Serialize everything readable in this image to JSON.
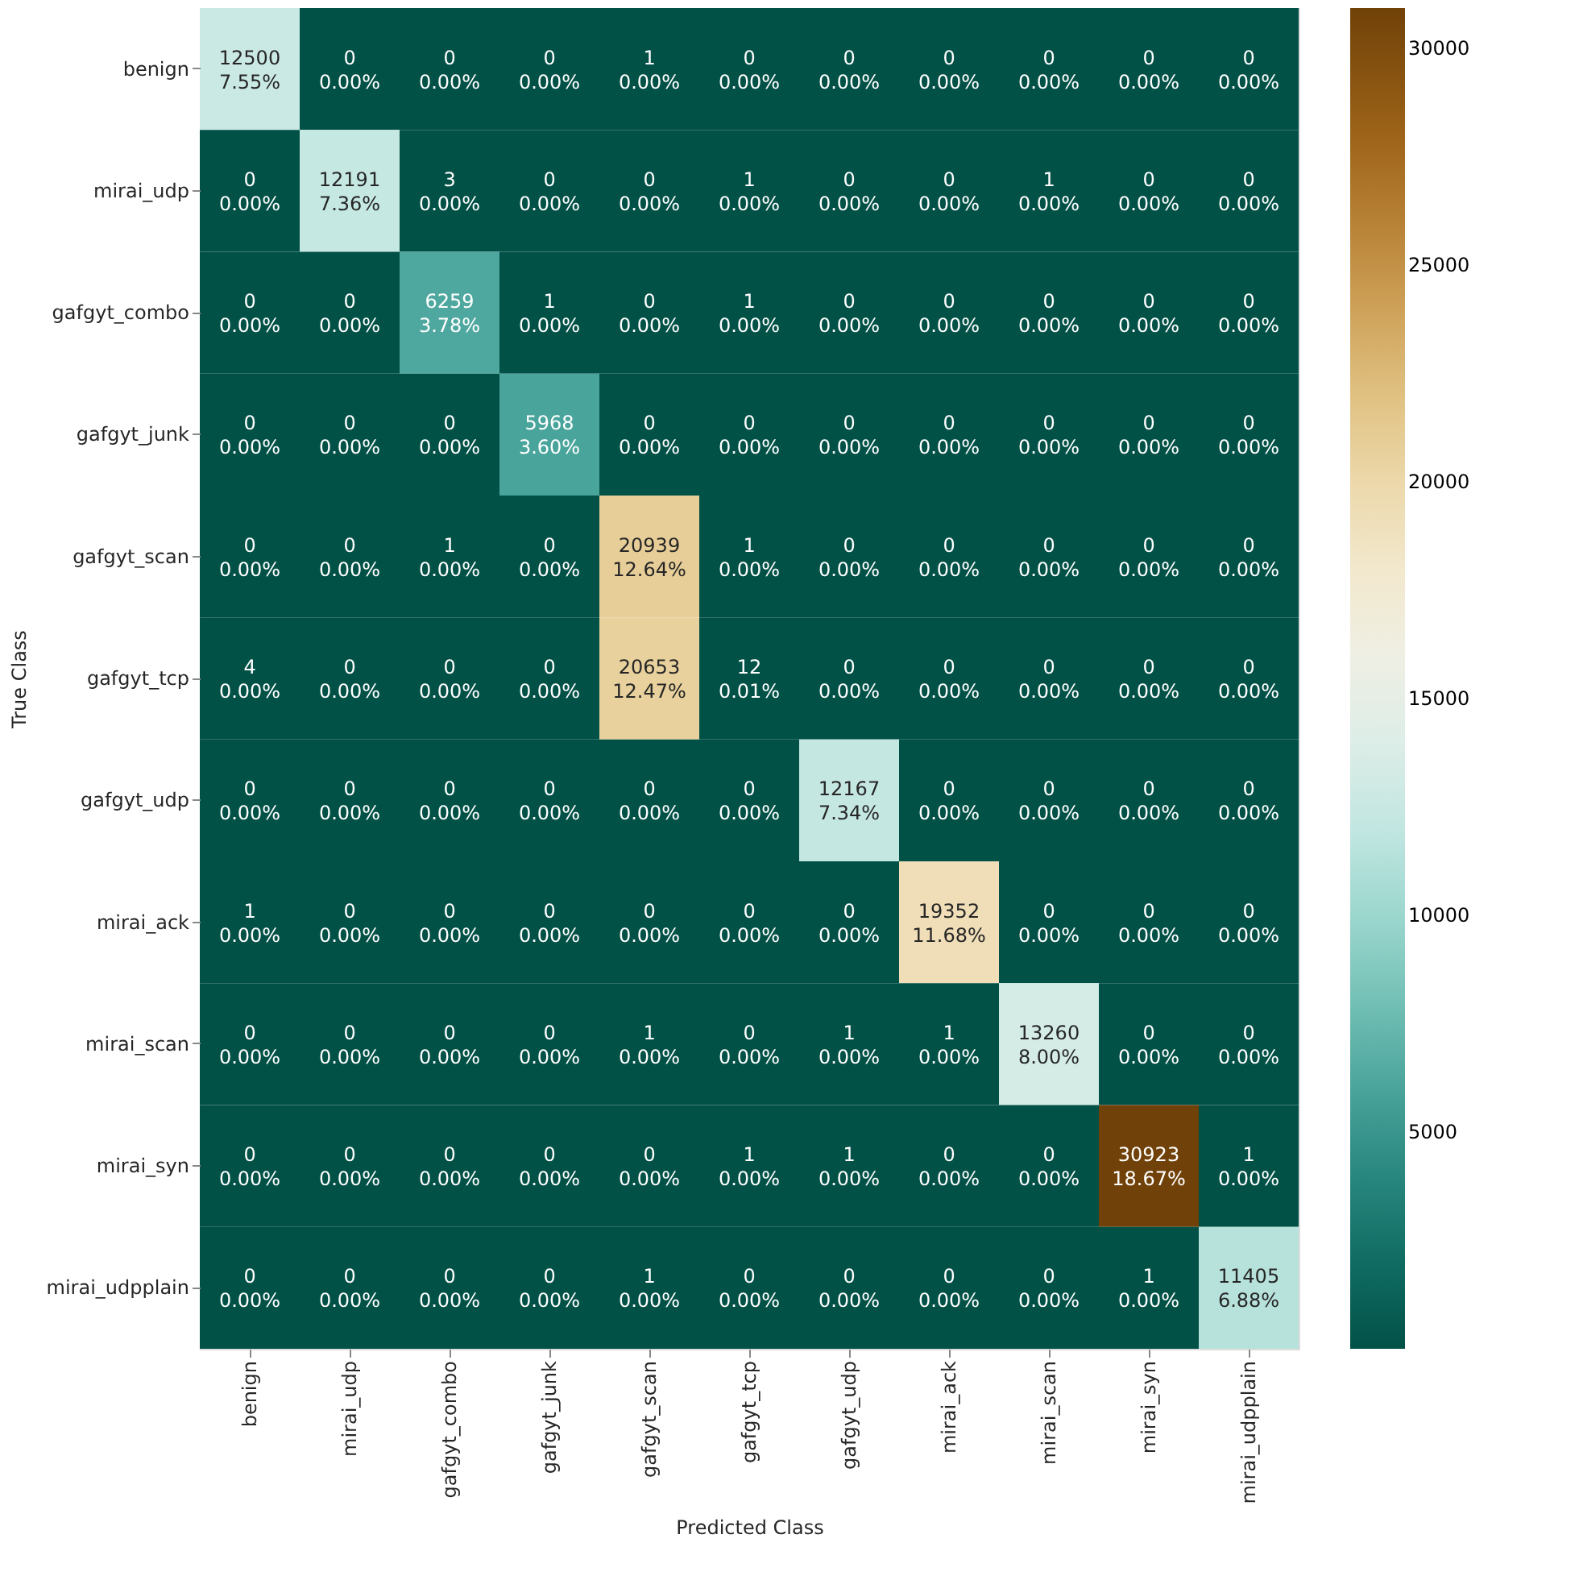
{
  "chart_data": {
    "type": "heatmap",
    "xlabel": "Predicted Class",
    "ylabel": "True Class",
    "categories": [
      "benign",
      "mirai_udp",
      "gafgyt_combo",
      "gafgyt_junk",
      "gafgyt_scan",
      "gafgyt_tcp",
      "gafgyt_udp",
      "mirai_ack",
      "mirai_scan",
      "mirai_syn",
      "mirai_udpplain"
    ],
    "y_categories": [
      "benign",
      "mirai_udp",
      "gafgyt_combo",
      "gafgyt_junk",
      "gafgyt_scan",
      "gafgyt_tcp",
      "gafgyt_udp",
      "mirai_ack",
      "mirai_scan",
      "mirai_syn",
      "mirai_udpplain"
    ],
    "cells": [
      [
        12500,
        0,
        0,
        0,
        1,
        0,
        0,
        0,
        0,
        0,
        0
      ],
      [
        0,
        12191,
        3,
        0,
        0,
        1,
        0,
        0,
        1,
        0,
        0
      ],
      [
        0,
        0,
        6259,
        1,
        0,
        1,
        0,
        0,
        0,
        0,
        0
      ],
      [
        0,
        0,
        0,
        5968,
        0,
        0,
        0,
        0,
        0,
        0,
        0
      ],
      [
        0,
        0,
        1,
        0,
        20939,
        1,
        0,
        0,
        0,
        0,
        0
      ],
      [
        4,
        0,
        0,
        0,
        20653,
        12,
        0,
        0,
        0,
        0,
        0
      ],
      [
        0,
        0,
        0,
        0,
        0,
        0,
        12167,
        0,
        0,
        0,
        0
      ],
      [
        1,
        0,
        0,
        0,
        0,
        0,
        0,
        19352,
        0,
        0,
        0
      ],
      [
        0,
        0,
        0,
        0,
        1,
        0,
        1,
        1,
        13260,
        0,
        0
      ],
      [
        0,
        0,
        0,
        0,
        0,
        1,
        1,
        0,
        0,
        30923,
        1
      ],
      [
        0,
        0,
        0,
        0,
        1,
        0,
        0,
        0,
        0,
        1,
        11405
      ]
    ],
    "cell_labels": [
      [
        "12500\n7.55%",
        "0\n0.00%",
        "0\n0.00%",
        "0\n0.00%",
        "1\n0.00%",
        "0\n0.00%",
        "0\n0.00%",
        "0\n0.00%",
        "0\n0.00%",
        "0\n0.00%",
        "0\n0.00%"
      ],
      [
        "0\n0.00%",
        "12191\n7.36%",
        "3\n0.00%",
        "0\n0.00%",
        "0\n0.00%",
        "1\n0.00%",
        "0\n0.00%",
        "0\n0.00%",
        "1\n0.00%",
        "0\n0.00%",
        "0\n0.00%"
      ],
      [
        "0\n0.00%",
        "0\n0.00%",
        "6259\n3.78%",
        "1\n0.00%",
        "0\n0.00%",
        "1\n0.00%",
        "0\n0.00%",
        "0\n0.00%",
        "0\n0.00%",
        "0\n0.00%",
        "0\n0.00%"
      ],
      [
        "0\n0.00%",
        "0\n0.00%",
        "0\n0.00%",
        "5968\n3.60%",
        "0\n0.00%",
        "0\n0.00%",
        "0\n0.00%",
        "0\n0.00%",
        "0\n0.00%",
        "0\n0.00%",
        "0\n0.00%"
      ],
      [
        "0\n0.00%",
        "0\n0.00%",
        "1\n0.00%",
        "0\n0.00%",
        "20939\n12.64%",
        "1\n0.00%",
        "0\n0.00%",
        "0\n0.00%",
        "0\n0.00%",
        "0\n0.00%",
        "0\n0.00%"
      ],
      [
        "4\n0.00%",
        "0\n0.00%",
        "0\n0.00%",
        "0\n0.00%",
        "20653\n12.47%",
        "12\n0.01%",
        "0\n0.00%",
        "0\n0.00%",
        "0\n0.00%",
        "0\n0.00%",
        "0\n0.00%"
      ],
      [
        "0\n0.00%",
        "0\n0.00%",
        "0\n0.00%",
        "0\n0.00%",
        "0\n0.00%",
        "0\n0.00%",
        "12167\n7.34%",
        "0\n0.00%",
        "0\n0.00%",
        "0\n0.00%",
        "0\n0.00%"
      ],
      [
        "1\n0.00%",
        "0\n0.00%",
        "0\n0.00%",
        "0\n0.00%",
        "0\n0.00%",
        "0\n0.00%",
        "0\n0.00%",
        "19352\n11.68%",
        "0\n0.00%",
        "0\n0.00%",
        "0\n0.00%"
      ],
      [
        "0\n0.00%",
        "0\n0.00%",
        "0\n0.00%",
        "0\n0.00%",
        "1\n0.00%",
        "0\n0.00%",
        "1\n0.00%",
        "1\n0.00%",
        "13260\n8.00%",
        "0\n0.00%",
        "0\n0.00%"
      ],
      [
        "0\n0.00%",
        "0\n0.00%",
        "0\n0.00%",
        "0\n0.00%",
        "0\n0.00%",
        "1\n0.00%",
        "1\n0.00%",
        "0\n0.00%",
        "0\n0.00%",
        "30923\n18.67%",
        "1\n0.00%"
      ],
      [
        "0\n0.00%",
        "0\n0.00%",
        "0\n0.00%",
        "0\n0.00%",
        "1\n0.00%",
        "0\n0.00%",
        "0\n0.00%",
        "0\n0.00%",
        "0\n0.00%",
        "1\n0.00%",
        "11405\n6.88%"
      ]
    ],
    "clim": [
      0,
      30923
    ],
    "cticks": [
      5000,
      10000,
      15000,
      20000,
      25000,
      30000
    ]
  }
}
